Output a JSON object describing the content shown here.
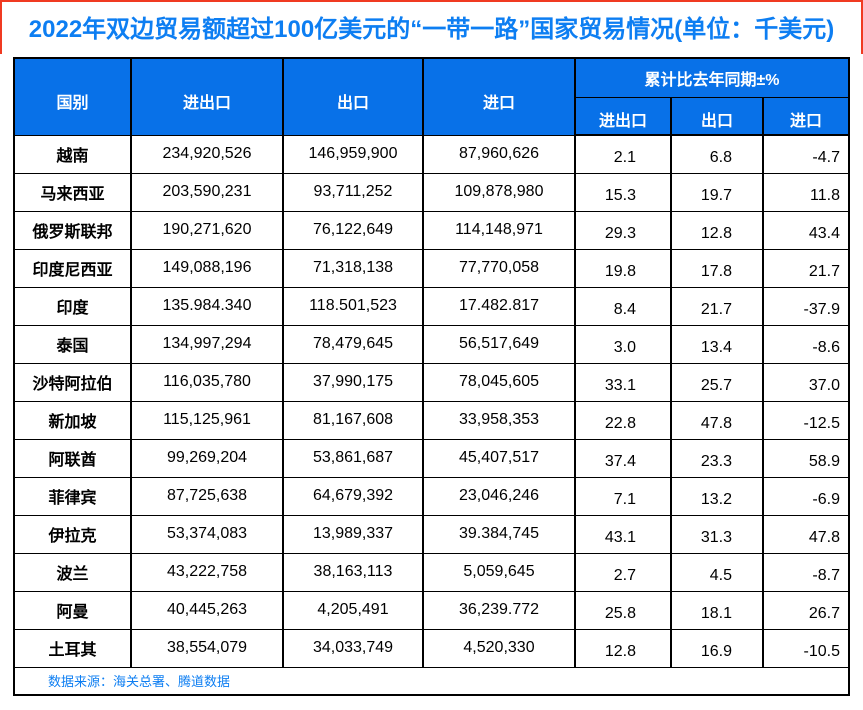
{
  "title": "2022年双边贸易额超过100亿美元的“一带一路”国家贸易情况(单位：千美元)",
  "header": {
    "country": "国别",
    "total": "进出口",
    "export": "出口",
    "import": "进口",
    "yoy_group": "累计比去年同期±%",
    "yoy_total": "进出口",
    "yoy_export": "出口",
    "yoy_import": "进口"
  },
  "source_note": "数据来源：海关总署、腾道数据",
  "colors": {
    "header_blue": "#0871e8",
    "title_blue": "#0d7ef2",
    "source_blue": "#0d7ef2",
    "border_red": "#f03a21",
    "grid_black": "#000000"
  },
  "chart_data": {
    "type": "table",
    "title": "2022年双边贸易额超过100亿美元的“一带一路”国家贸易情况(单位：千美元)",
    "columns": [
      "国别",
      "进出口",
      "出口",
      "进口",
      "累计比去年同期±% 进出口",
      "累计比去年同期±% 出口",
      "累计比去年同期±% 进口"
    ],
    "group_header": "累计比去年同期±%",
    "rows": [
      [
        "越南",
        "234,920,526",
        "146,959,900",
        "87,960,626",
        "2.1",
        "6.8",
        "-4.7"
      ],
      [
        "马来西亚",
        "203,590,231",
        "93,711,252",
        "109,878,980",
        "15.3",
        "19.7",
        "11.8"
      ],
      [
        "俄罗斯联邦",
        "190,271,620",
        "76,122,649",
        "114,148,971",
        "29.3",
        "12.8",
        "43.4"
      ],
      [
        "印度尼西亚",
        "149,088,196",
        "71,318,138",
        "77,770,058",
        "19.8",
        "17.8",
        "21.7"
      ],
      [
        "印度",
        "135.984.340",
        "118.501,523",
        "17.482.817",
        "8.4",
        "21.7",
        "-37.9"
      ],
      [
        "泰国",
        "134,997,294",
        "78,479,645",
        "56,517,649",
        "3.0",
        "13.4",
        "-8.6"
      ],
      [
        "沙特阿拉伯",
        "116,035,780",
        "37,990,175",
        "78,045,605",
        "33.1",
        "25.7",
        "37.0"
      ],
      [
        "新加坡",
        "115,125,961",
        "81,167,608",
        "33,958,353",
        "22.8",
        "47.8",
        "-12.5"
      ],
      [
        "阿联酋",
        "99,269,204",
        "53,861,687",
        "45,407,517",
        "37.4",
        "23.3",
        "58.9"
      ],
      [
        "菲律宾",
        "87,725,638",
        "64,679,392",
        "23,046,246",
        "7.1",
        "13.2",
        "-6.9"
      ],
      [
        "伊拉克",
        "53,374,083",
        "13,989,337",
        "39.384,745",
        "43.1",
        "31.3",
        "47.8"
      ],
      [
        "波兰",
        "43,222,758",
        "38,163,113",
        "5,059,645",
        "2.7",
        "4.5",
        "-8.7"
      ],
      [
        "阿曼",
        "40,445,263",
        "4,205,491",
        "36,239.772",
        "25.8",
        "18.1",
        "26.7"
      ],
      [
        "土耳其",
        "38,554,079",
        "34,033,749",
        "4,520,330",
        "12.8",
        "16.9",
        "-10.5"
      ]
    ],
    "source": "数据来源：海关总署、腾道数据"
  }
}
